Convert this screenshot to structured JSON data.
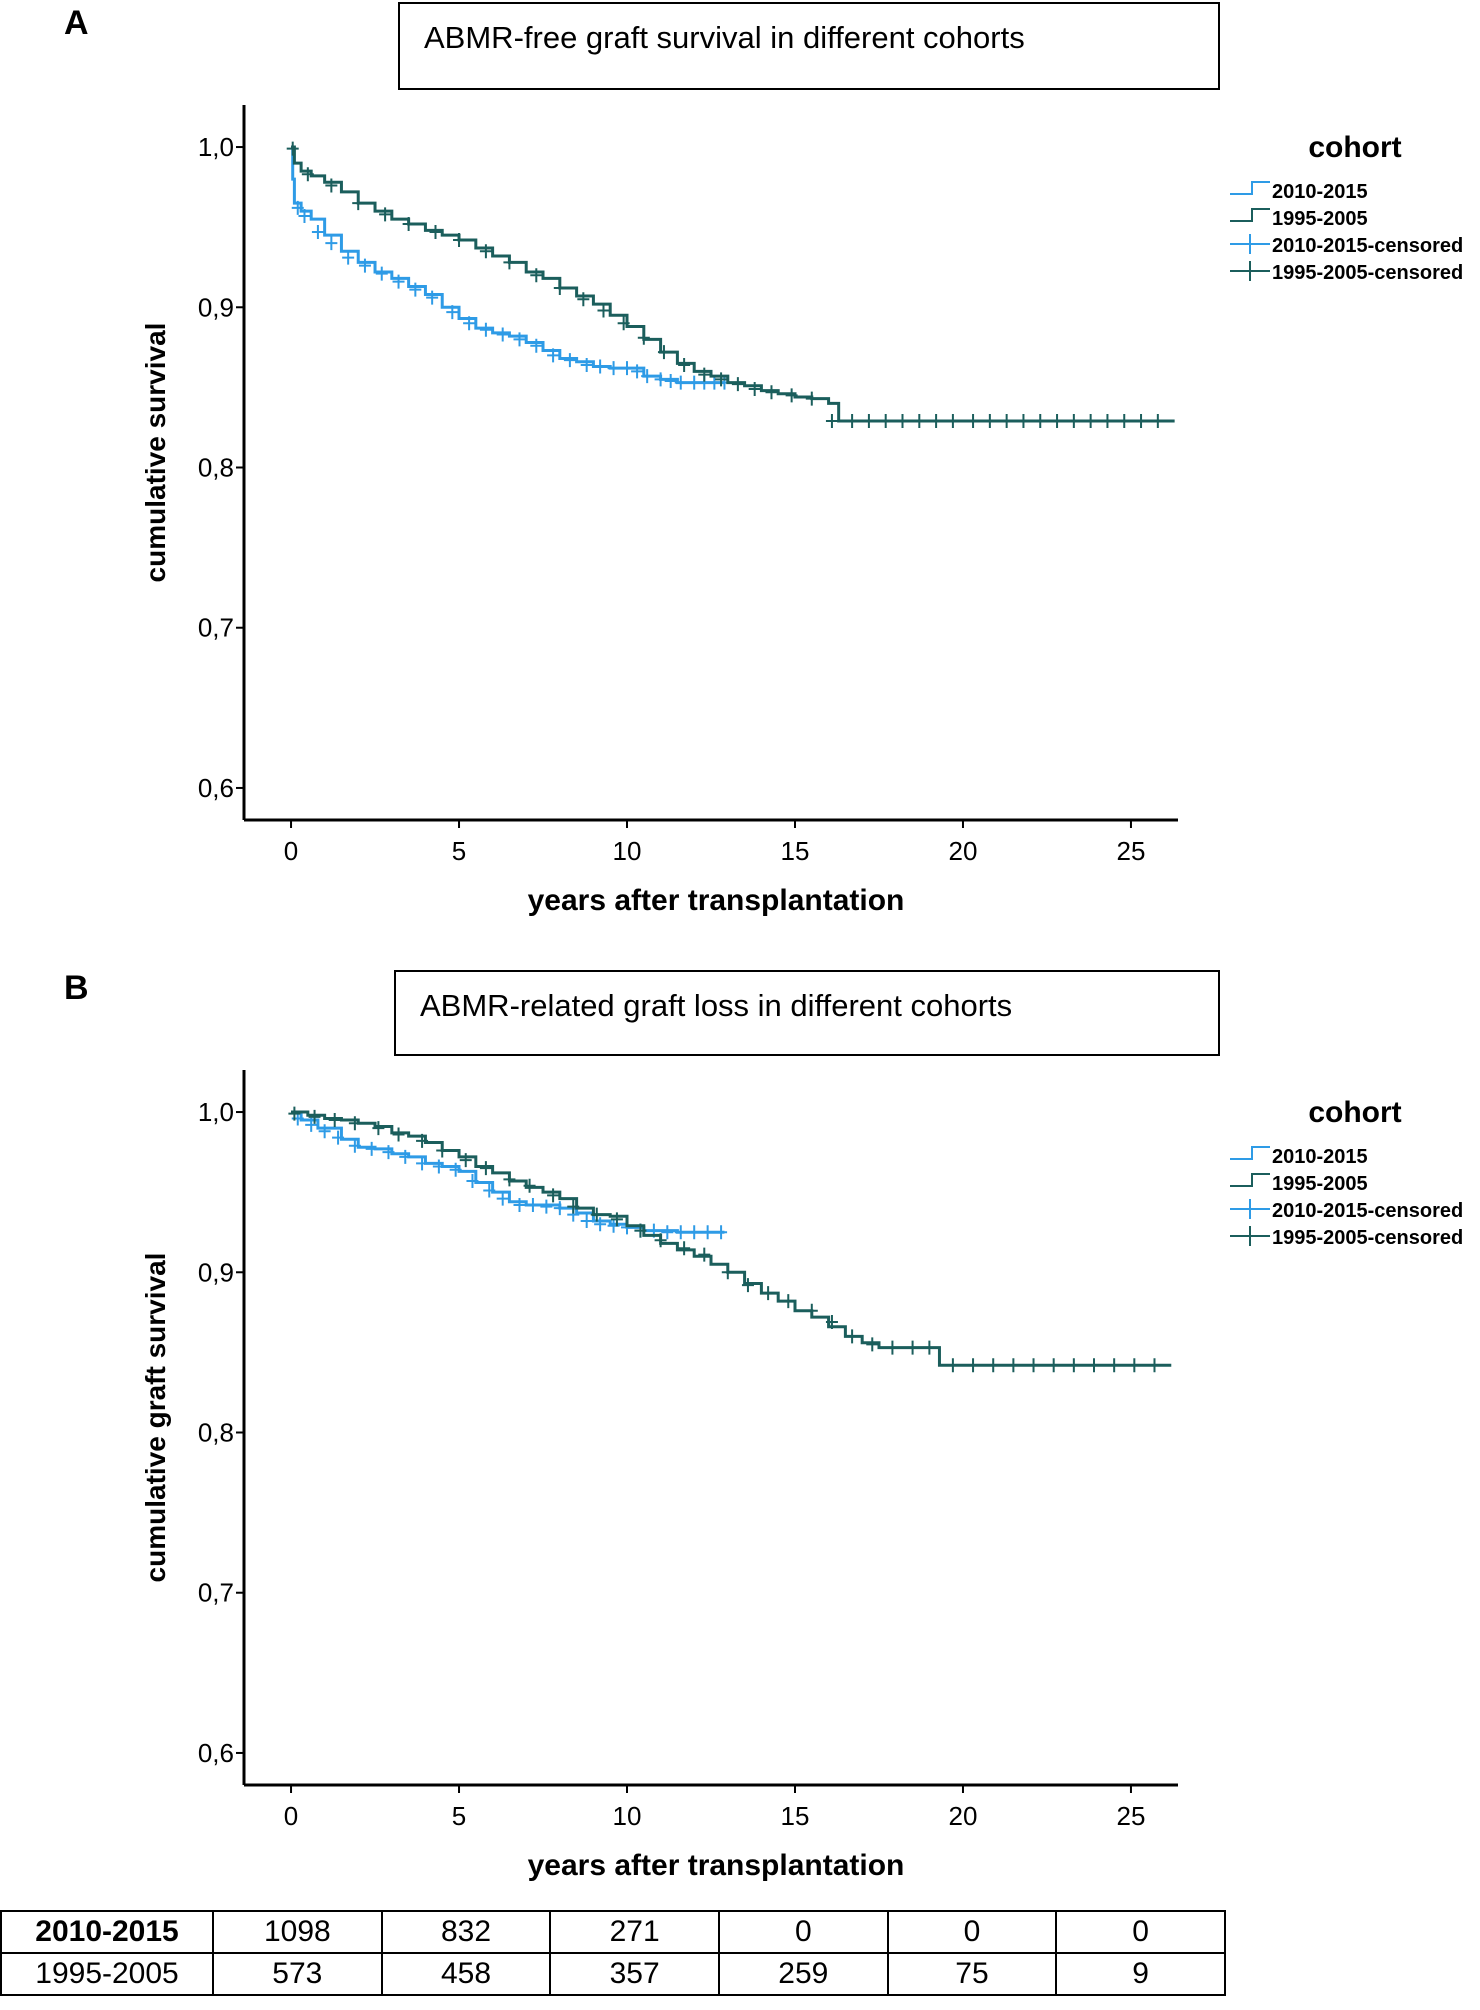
{
  "panels": [
    {
      "letter": "A",
      "title": "ABMR-free graft survival in different cohorts"
    },
    {
      "letter": "B",
      "title": "ABMR-related graft loss in different cohorts"
    }
  ],
  "risk_table": {
    "rows": [
      {
        "label": "2010-2015",
        "bold": true,
        "values": [
          "1098",
          "832",
          "271",
          "0",
          "0",
          "0"
        ]
      },
      {
        "label": "1995-2005",
        "bold": false,
        "values": [
          "573",
          "458",
          "357",
          "259",
          "75",
          "9"
        ]
      }
    ]
  },
  "colors": {
    "cohort_2010_2015": "#2e9be6",
    "cohort_1995_2005": "#1b5e5c"
  },
  "chart_data": [
    {
      "type": "line",
      "subtype": "kaplan-meier-step",
      "title": "ABMR-free graft survival in different cohorts",
      "xlabel": "years after transplantation",
      "ylabel": "cumulative survival",
      "xlim": [
        -1.4,
        26.4
      ],
      "ylim": [
        0.58,
        1.02
      ],
      "xticks": [
        0,
        5,
        10,
        15,
        20,
        25
      ],
      "xtick_labels": [
        "0",
        "5",
        "10",
        "15",
        "20",
        "25"
      ],
      "yticks": [
        0.6,
        0.7,
        0.8,
        0.9,
        1.0
      ],
      "ytick_labels": [
        "0,6",
        "0,7",
        "0,8",
        "0,9",
        "1,0"
      ],
      "legend_title": "cohort",
      "legend_position": "top-right",
      "legend": [
        "2010-2015",
        "1995-2005",
        "2010-2015-censored",
        "1995-2005-censored"
      ],
      "series": [
        {
          "name": "2010-2015",
          "color": "#2e9be6",
          "x": [
            0,
            0.05,
            0.1,
            0.3,
            0.6,
            1.0,
            1.5,
            2.0,
            2.5,
            3.0,
            3.5,
            4.0,
            4.5,
            5.0,
            5.5,
            6.0,
            6.5,
            7.0,
            7.5,
            8.0,
            8.5,
            9.0,
            9.5,
            10.0,
            10.5,
            11.0,
            11.5,
            12.0,
            12.5,
            12.9
          ],
          "y": [
            1.0,
            0.98,
            0.965,
            0.96,
            0.955,
            0.945,
            0.935,
            0.928,
            0.922,
            0.918,
            0.913,
            0.908,
            0.9,
            0.893,
            0.887,
            0.884,
            0.882,
            0.878,
            0.873,
            0.868,
            0.866,
            0.863,
            0.862,
            0.862,
            0.857,
            0.855,
            0.853,
            0.853,
            0.853,
            0.853
          ],
          "censor_x": [
            0.2,
            0.4,
            0.8,
            1.2,
            1.7,
            2.2,
            2.7,
            3.2,
            3.7,
            4.2,
            4.8,
            5.3,
            5.8,
            6.3,
            6.8,
            7.3,
            7.8,
            8.3,
            8.8,
            9.2,
            9.6,
            10.0,
            10.3,
            10.6,
            11.0,
            11.3,
            11.6,
            12.0,
            12.3,
            12.6,
            12.9
          ],
          "censor_y": [
            0.962,
            0.957,
            0.947,
            0.94,
            0.931,
            0.926,
            0.921,
            0.916,
            0.911,
            0.906,
            0.897,
            0.89,
            0.886,
            0.883,
            0.88,
            0.876,
            0.87,
            0.867,
            0.864,
            0.863,
            0.862,
            0.862,
            0.86,
            0.857,
            0.855,
            0.854,
            0.853,
            0.853,
            0.853,
            0.853,
            0.853
          ]
        },
        {
          "name": "1995-2005",
          "color": "#1b5e5c",
          "x": [
            0,
            0.1,
            0.3,
            0.6,
            1.0,
            1.5,
            2.0,
            2.5,
            3.0,
            3.5,
            4.0,
            4.5,
            5.0,
            5.5,
            6.0,
            6.5,
            7.0,
            7.5,
            8.0,
            8.5,
            9.0,
            9.5,
            10.0,
            10.5,
            11.0,
            11.5,
            12.0,
            12.5,
            13.0,
            13.5,
            14.0,
            14.5,
            15.0,
            15.5,
            16.0,
            16.3,
            17.0,
            18.0,
            20.0,
            22.0,
            24.0,
            26.3
          ],
          "y": [
            1.0,
            0.99,
            0.985,
            0.982,
            0.978,
            0.972,
            0.965,
            0.96,
            0.955,
            0.952,
            0.948,
            0.945,
            0.942,
            0.937,
            0.932,
            0.928,
            0.922,
            0.918,
            0.912,
            0.907,
            0.902,
            0.895,
            0.888,
            0.88,
            0.872,
            0.865,
            0.86,
            0.857,
            0.853,
            0.851,
            0.848,
            0.846,
            0.844,
            0.843,
            0.84,
            0.829,
            0.829,
            0.829,
            0.829,
            0.829,
            0.829,
            0.829
          ],
          "censor_x": [
            0.05,
            0.5,
            1.2,
            2.0,
            2.8,
            3.5,
            4.3,
            5.0,
            5.8,
            6.5,
            7.3,
            8.0,
            8.7,
            9.3,
            9.9,
            10.5,
            11.1,
            11.7,
            12.3,
            12.8,
            13.3,
            13.8,
            14.3,
            14.9,
            15.5,
            16.1,
            16.7,
            17.2,
            17.7,
            18.2,
            18.7,
            19.2,
            19.7,
            20.3,
            20.8,
            21.3,
            21.8,
            22.3,
            22.8,
            23.3,
            23.8,
            24.3,
            24.8,
            25.3,
            25.8
          ],
          "censor_y": [
            0.999,
            0.983,
            0.976,
            0.965,
            0.958,
            0.952,
            0.947,
            0.942,
            0.935,
            0.928,
            0.92,
            0.912,
            0.905,
            0.898,
            0.89,
            0.881,
            0.872,
            0.864,
            0.858,
            0.855,
            0.852,
            0.849,
            0.847,
            0.845,
            0.843,
            0.829,
            0.829,
            0.829,
            0.829,
            0.829,
            0.829,
            0.829,
            0.829,
            0.829,
            0.829,
            0.829,
            0.829,
            0.829,
            0.829,
            0.829,
            0.829,
            0.829,
            0.829,
            0.829,
            0.829
          ]
        }
      ]
    },
    {
      "type": "line",
      "subtype": "kaplan-meier-step",
      "title": "ABMR-related graft loss in different cohorts",
      "xlabel": "years after transplantation",
      "ylabel": "cumulative graft survival",
      "xlim": [
        -1.4,
        26.4
      ],
      "ylim": [
        0.58,
        1.02
      ],
      "xticks": [
        0,
        5,
        10,
        15,
        20,
        25
      ],
      "xtick_labels": [
        "0",
        "5",
        "10",
        "15",
        "20",
        "25"
      ],
      "yticks": [
        0.6,
        0.7,
        0.8,
        0.9,
        1.0
      ],
      "ytick_labels": [
        "0,6",
        "0,7",
        "0,8",
        "0,9",
        "1,0"
      ],
      "legend_title": "cohort",
      "legend_position": "top-right",
      "legend": [
        "2010-2015",
        "1995-2005",
        "2010-2015-censored",
        "1995-2005-censored"
      ],
      "series": [
        {
          "name": "2010-2015",
          "color": "#2e9be6",
          "x": [
            0,
            0.3,
            0.8,
            1.5,
            2.0,
            2.5,
            3.0,
            3.5,
            4.0,
            4.5,
            5.0,
            5.5,
            6.0,
            6.5,
            7.0,
            7.5,
            8.0,
            8.5,
            9.0,
            9.5,
            10.0,
            10.5,
            11.0,
            11.5,
            12.0,
            12.5,
            12.9
          ],
          "y": [
            1.0,
            0.995,
            0.99,
            0.983,
            0.978,
            0.977,
            0.974,
            0.972,
            0.968,
            0.966,
            0.963,
            0.956,
            0.95,
            0.944,
            0.942,
            0.942,
            0.94,
            0.937,
            0.932,
            0.93,
            0.928,
            0.926,
            0.926,
            0.925,
            0.925,
            0.925,
            0.925
          ],
          "censor_x": [
            0.2,
            0.6,
            1.0,
            1.4,
            1.9,
            2.4,
            2.9,
            3.4,
            3.9,
            4.4,
            4.9,
            5.4,
            5.9,
            6.3,
            6.8,
            7.2,
            7.6,
            8.0,
            8.4,
            8.8,
            9.2,
            9.6,
            10.0,
            10.4,
            10.8,
            11.2,
            11.6,
            12.0,
            12.4,
            12.8
          ],
          "censor_y": [
            0.996,
            0.992,
            0.988,
            0.984,
            0.979,
            0.977,
            0.975,
            0.972,
            0.968,
            0.966,
            0.964,
            0.957,
            0.951,
            0.946,
            0.942,
            0.942,
            0.941,
            0.94,
            0.936,
            0.932,
            0.93,
            0.929,
            0.928,
            0.926,
            0.926,
            0.925,
            0.925,
            0.925,
            0.925,
            0.925
          ]
        },
        {
          "name": "1995-2005",
          "color": "#1b5e5c",
          "x": [
            0,
            0.5,
            1.0,
            1.5,
            2.0,
            2.5,
            3.0,
            3.5,
            4.0,
            4.5,
            5.0,
            5.5,
            6.0,
            6.5,
            7.0,
            7.5,
            8.0,
            8.5,
            9.0,
            9.5,
            10.0,
            10.5,
            11.0,
            11.5,
            12.0,
            12.5,
            13.0,
            13.5,
            14.0,
            14.5,
            15.0,
            15.5,
            16.0,
            16.5,
            17.0,
            17.5,
            18.0,
            18.5,
            19.0,
            19.3,
            20.0,
            22.0,
            24.0,
            26.2
          ],
          "y": [
            1.0,
            0.998,
            0.996,
            0.995,
            0.993,
            0.991,
            0.987,
            0.985,
            0.981,
            0.976,
            0.972,
            0.966,
            0.962,
            0.957,
            0.953,
            0.95,
            0.946,
            0.94,
            0.936,
            0.935,
            0.929,
            0.923,
            0.918,
            0.914,
            0.91,
            0.905,
            0.9,
            0.893,
            0.887,
            0.882,
            0.876,
            0.872,
            0.866,
            0.86,
            0.856,
            0.853,
            0.853,
            0.853,
            0.853,
            0.842,
            0.842,
            0.842,
            0.842,
            0.842
          ],
          "censor_x": [
            0.1,
            0.7,
            1.3,
            1.9,
            2.6,
            3.2,
            3.9,
            4.5,
            5.2,
            5.8,
            6.5,
            7.1,
            7.8,
            8.4,
            9.1,
            9.7,
            10.4,
            11.0,
            11.7,
            12.3,
            13.0,
            13.6,
            14.2,
            14.8,
            15.5,
            16.1,
            16.7,
            17.3,
            17.9,
            18.5,
            19.0,
            19.7,
            20.3,
            20.9,
            21.5,
            22.1,
            22.7,
            23.3,
            23.9,
            24.5,
            25.1,
            25.7
          ],
          "censor_y": [
            0.999,
            0.997,
            0.995,
            0.993,
            0.99,
            0.986,
            0.982,
            0.976,
            0.97,
            0.965,
            0.958,
            0.954,
            0.948,
            0.941,
            0.936,
            0.933,
            0.926,
            0.92,
            0.915,
            0.911,
            0.9,
            0.892,
            0.887,
            0.882,
            0.876,
            0.869,
            0.86,
            0.855,
            0.853,
            0.853,
            0.853,
            0.842,
            0.842,
            0.842,
            0.842,
            0.842,
            0.842,
            0.842,
            0.842,
            0.842,
            0.842,
            0.842
          ]
        }
      ]
    }
  ]
}
